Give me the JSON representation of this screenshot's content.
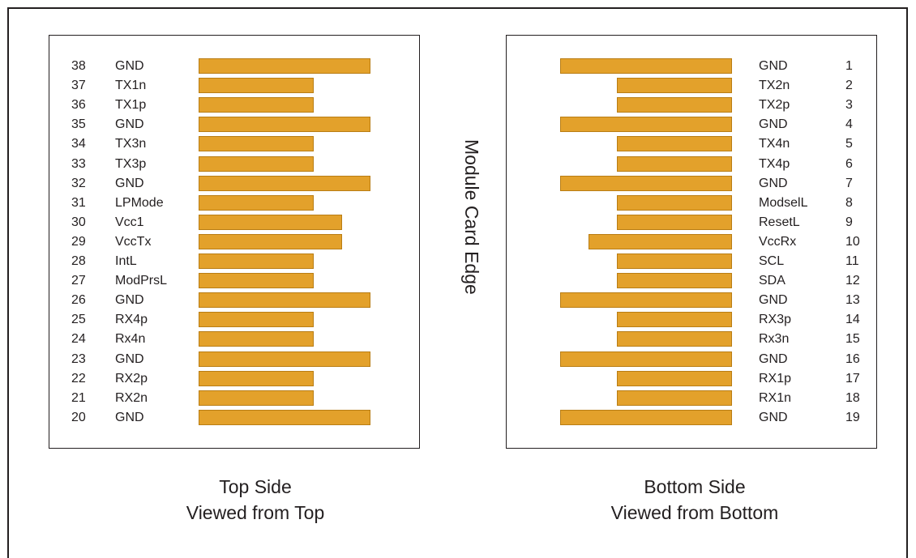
{
  "edge_label": "Module Card Edge",
  "top_side": {
    "caption_line1": "Top Side",
    "caption_line2": "Viewed from Top",
    "pins": [
      {
        "num": "38",
        "signal": "GND",
        "pad": "long"
      },
      {
        "num": "37",
        "signal": "TX1n",
        "pad": "short"
      },
      {
        "num": "36",
        "signal": "TX1p",
        "pad": "short"
      },
      {
        "num": "35",
        "signal": "GND",
        "pad": "long"
      },
      {
        "num": "34",
        "signal": "TX3n",
        "pad": "short"
      },
      {
        "num": "33",
        "signal": "TX3p",
        "pad": "short"
      },
      {
        "num": "32",
        "signal": "GND",
        "pad": "long"
      },
      {
        "num": "31",
        "signal": "LPMode",
        "pad": "short"
      },
      {
        "num": "30",
        "signal": "Vcc1",
        "pad": "medium"
      },
      {
        "num": "29",
        "signal": "VccTx",
        "pad": "medium"
      },
      {
        "num": "28",
        "signal": "IntL",
        "pad": "short"
      },
      {
        "num": "27",
        "signal": "ModPrsL",
        "pad": "short"
      },
      {
        "num": "26",
        "signal": "GND",
        "pad": "long"
      },
      {
        "num": "25",
        "signal": "RX4p",
        "pad": "short"
      },
      {
        "num": "24",
        "signal": "Rx4n",
        "pad": "short"
      },
      {
        "num": "23",
        "signal": "GND",
        "pad": "long"
      },
      {
        "num": "22",
        "signal": "RX2p",
        "pad": "short"
      },
      {
        "num": "21",
        "signal": "RX2n",
        "pad": "short"
      },
      {
        "num": "20",
        "signal": "GND",
        "pad": "long"
      }
    ]
  },
  "bottom_side": {
    "caption_line1": "Bottom Side",
    "caption_line2": "Viewed from Bottom",
    "pins": [
      {
        "num": "1",
        "signal": "GND",
        "pad": "long"
      },
      {
        "num": "2",
        "signal": "TX2n",
        "pad": "short"
      },
      {
        "num": "3",
        "signal": "TX2p",
        "pad": "short"
      },
      {
        "num": "4",
        "signal": "GND",
        "pad": "long"
      },
      {
        "num": "5",
        "signal": "TX4n",
        "pad": "short"
      },
      {
        "num": "6",
        "signal": "TX4p",
        "pad": "short"
      },
      {
        "num": "7",
        "signal": "GND",
        "pad": "long"
      },
      {
        "num": "8",
        "signal": "ModselL",
        "pad": "short"
      },
      {
        "num": "9",
        "signal": "ResetL",
        "pad": "short"
      },
      {
        "num": "10",
        "signal": "VccRx",
        "pad": "medium"
      },
      {
        "num": "11",
        "signal": "SCL",
        "pad": "short"
      },
      {
        "num": "12",
        "signal": "SDA",
        "pad": "short"
      },
      {
        "num": "13",
        "signal": "GND",
        "pad": "long"
      },
      {
        "num": "14",
        "signal": "RX3p",
        "pad": "short"
      },
      {
        "num": "15",
        "signal": "Rx3n",
        "pad": "short"
      },
      {
        "num": "16",
        "signal": "GND",
        "pad": "long"
      },
      {
        "num": "17",
        "signal": "RX1p",
        "pad": "short"
      },
      {
        "num": "18",
        "signal": "RX1n",
        "pad": "short"
      },
      {
        "num": "19",
        "signal": "GND",
        "pad": "long"
      }
    ]
  }
}
